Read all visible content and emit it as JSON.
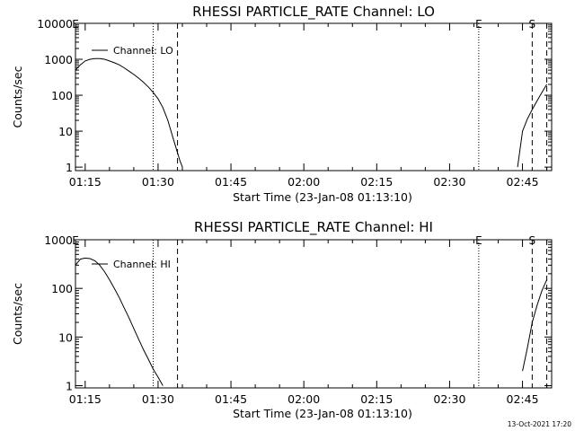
{
  "footer": {
    "timestamp": "13-Oct-2021 17:20"
  },
  "chart_data": [
    {
      "type": "line",
      "title": "RHESSI PARTICLE_RATE Channel: LO",
      "xlabel": "Start Time (23-Jan-08 01:13:10)",
      "ylabel": "Counts/sec",
      "yscale": "log",
      "xlim": [
        "01:13",
        "02:51"
      ],
      "ylim": [
        0.8,
        10000
      ],
      "x_ticks": [
        "01:15",
        "01:30",
        "01:45",
        "02:00",
        "02:15",
        "02:30",
        "02:45"
      ],
      "y_ticks": [
        {
          "value": 1,
          "label": "1"
        },
        {
          "value": 10,
          "label": "10"
        },
        {
          "value": 100,
          "label": "100"
        },
        {
          "value": 1000,
          "label": "1000"
        },
        {
          "value": 10000,
          "label": "10000"
        }
      ],
      "legend": {
        "label": "Channel: LO",
        "placement": "top-left"
      },
      "markers": [
        {
          "time": "01:13",
          "style": "none",
          "label": "E"
        },
        {
          "time": "01:29",
          "style": "dotted",
          "label": ""
        },
        {
          "time": "01:34",
          "style": "dashed",
          "label": ""
        },
        {
          "time": "02:36",
          "style": "dotted",
          "label": "E"
        },
        {
          "time": "02:47",
          "style": "dashed",
          "label": "S"
        },
        {
          "time": "02:50",
          "style": "dashed",
          "label": ""
        }
      ],
      "series": [
        {
          "segments": [
            [
              [
                "01:13",
                500
              ],
              [
                "01:14",
                700
              ],
              [
                "01:15",
                900
              ],
              [
                "01:16",
                1000
              ],
              [
                "01:17",
                1050
              ],
              [
                "01:18",
                1050
              ],
              [
                "01:19",
                1000
              ],
              [
                "01:20",
                900
              ],
              [
                "01:21",
                800
              ],
              [
                "01:22",
                700
              ],
              [
                "01:23",
                580
              ],
              [
                "01:24",
                470
              ],
              [
                "01:25",
                380
              ],
              [
                "01:26",
                300
              ],
              [
                "01:27",
                230
              ],
              [
                "01:28",
                170
              ],
              [
                "01:29",
                120
              ],
              [
                "01:30",
                80
              ],
              [
                "01:31",
                45
              ],
              [
                "01:32",
                20
              ],
              [
                "01:33",
                7
              ],
              [
                "01:34",
                2.5
              ],
              [
                "01:34.5",
                1.5
              ],
              [
                "01:35",
                1
              ]
            ],
            [
              [
                "02:44",
                1
              ],
              [
                "02:45",
                10
              ],
              [
                "02:46",
                22
              ],
              [
                "02:47",
                40
              ],
              [
                "02:48",
                70
              ],
              [
                "02:49",
                120
              ],
              [
                "02:50",
                200
              ]
            ]
          ]
        }
      ]
    },
    {
      "type": "line",
      "title": "RHESSI PARTICLE_RATE Channel: HI",
      "xlabel": "Start Time (23-Jan-08 01:13:10)",
      "ylabel": "Counts/sec",
      "yscale": "log",
      "xlim": [
        "01:13",
        "02:51"
      ],
      "ylim": [
        0.9,
        1000
      ],
      "x_ticks": [
        "01:15",
        "01:30",
        "01:45",
        "02:00",
        "02:15",
        "02:30",
        "02:45"
      ],
      "y_ticks": [
        {
          "value": 1,
          "label": "1"
        },
        {
          "value": 10,
          "label": "10"
        },
        {
          "value": 100,
          "label": "100"
        },
        {
          "value": 1000,
          "label": "1000"
        }
      ],
      "legend": {
        "label": "Channel: HI",
        "placement": "top-left"
      },
      "markers": [
        {
          "time": "01:13",
          "style": "none",
          "label": "E"
        },
        {
          "time": "01:29",
          "style": "dotted",
          "label": ""
        },
        {
          "time": "01:34",
          "style": "dashed",
          "label": ""
        },
        {
          "time": "02:36",
          "style": "dotted",
          "label": "E"
        },
        {
          "time": "02:47",
          "style": "dashed",
          "label": "S"
        },
        {
          "time": "02:50",
          "style": "dashed",
          "label": ""
        }
      ],
      "series": [
        {
          "segments": [
            [
              [
                "01:13",
                300
              ],
              [
                "01:14",
                400
              ],
              [
                "01:15",
                420
              ],
              [
                "01:16",
                410
              ],
              [
                "01:17",
                370
              ],
              [
                "01:18",
                300
              ],
              [
                "01:19",
                220
              ],
              [
                "01:20",
                150
              ],
              [
                "01:21",
                100
              ],
              [
                "01:22",
                65
              ],
              [
                "01:23",
                40
              ],
              [
                "01:24",
                25
              ],
              [
                "01:25",
                15
              ],
              [
                "01:26",
                9
              ],
              [
                "01:27",
                5.5
              ],
              [
                "01:28",
                3.5
              ],
              [
                "01:29",
                2.2
              ],
              [
                "01:30",
                1.5
              ],
              [
                "01:31",
                1
              ]
            ],
            [
              [
                "02:45",
                2
              ],
              [
                "02:46",
                6
              ],
              [
                "02:47",
                20
              ],
              [
                "02:48",
                45
              ],
              [
                "02:49",
                90
              ],
              [
                "02:50",
                150
              ]
            ]
          ]
        }
      ]
    }
  ]
}
